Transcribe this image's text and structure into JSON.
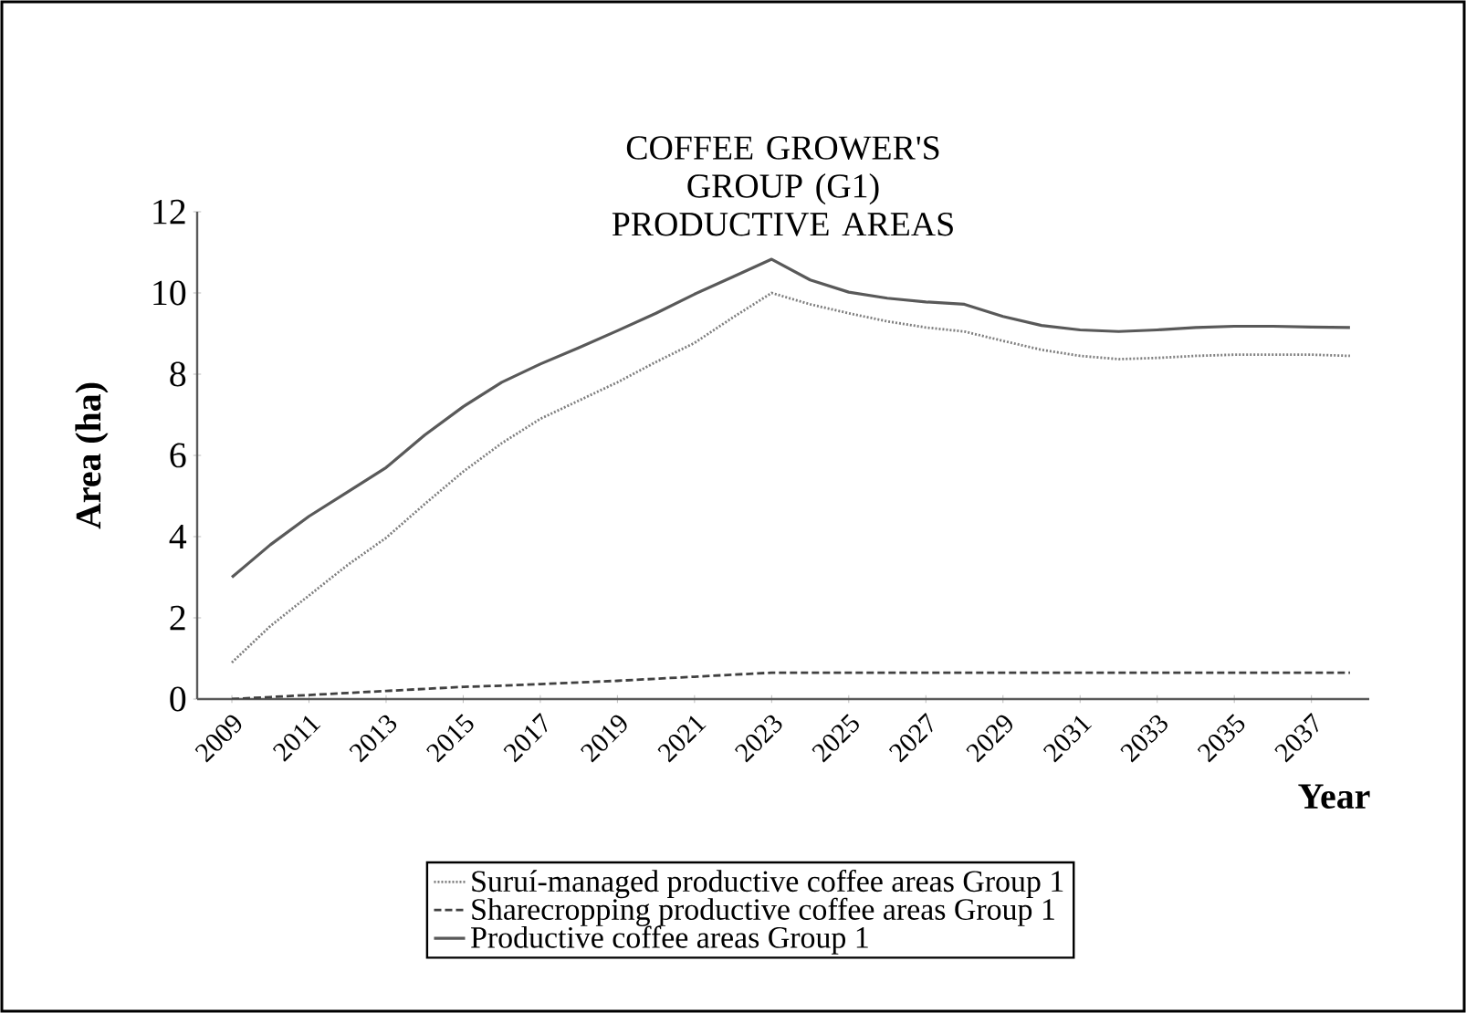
{
  "chart_data": {
    "type": "line",
    "title": "COFFEE GROWER'S GROUP (G1) PRODUCTIVE AREAS",
    "xlabel": "Year",
    "ylabel": "Area (ha)",
    "x": [
      2009,
      2010,
      2011,
      2012,
      2013,
      2014,
      2015,
      2016,
      2017,
      2018,
      2019,
      2020,
      2021,
      2022,
      2023,
      2024,
      2025,
      2026,
      2027,
      2028,
      2029,
      2030,
      2031,
      2032,
      2033,
      2034,
      2035,
      2036,
      2037,
      2038
    ],
    "xlim": [
      2008.1,
      2038.5
    ],
    "xticks": [
      2009,
      2011,
      2013,
      2015,
      2017,
      2019,
      2021,
      2023,
      2025,
      2027,
      2029,
      2031,
      2033,
      2035,
      2037
    ],
    "ylim": [
      0,
      12
    ],
    "yticks": [
      0,
      2,
      4,
      6,
      8,
      10,
      12
    ],
    "legend": "bottom",
    "series": [
      {
        "name": "Suruí-managed productive coffee areas Group 1",
        "color": "#7f7f7f",
        "line_style": "dotted",
        "values": [
          0.9,
          1.8,
          2.55,
          3.3,
          3.97,
          4.8,
          5.6,
          6.3,
          6.9,
          7.35,
          7.8,
          8.3,
          8.77,
          9.4,
          10.0,
          9.72,
          9.5,
          9.3,
          9.15,
          9.05,
          8.82,
          8.6,
          8.45,
          8.37,
          8.4,
          8.45,
          8.48,
          8.48,
          8.48,
          8.45
        ]
      },
      {
        "name": "Sharecropping  productive coffee areas Group 1",
        "color": "#404040",
        "line_style": "dashed",
        "values": [
          0.0,
          0.05,
          0.1,
          0.15,
          0.2,
          0.25,
          0.3,
          0.33,
          0.37,
          0.41,
          0.45,
          0.5,
          0.55,
          0.6,
          0.65,
          0.65,
          0.65,
          0.65,
          0.65,
          0.65,
          0.65,
          0.65,
          0.65,
          0.65,
          0.65,
          0.65,
          0.65,
          0.65,
          0.65,
          0.65
        ]
      },
      {
        "name": "Productive coffee areas Group 1",
        "color": "#595959",
        "line_style": "solid",
        "values": [
          3.0,
          3.8,
          4.5,
          5.1,
          5.7,
          6.5,
          7.2,
          7.8,
          8.25,
          8.65,
          9.07,
          9.5,
          9.97,
          10.4,
          10.83,
          10.32,
          10.02,
          9.87,
          9.78,
          9.72,
          9.42,
          9.2,
          9.09,
          9.05,
          9.09,
          9.15,
          9.18,
          9.18,
          9.16,
          9.15
        ]
      }
    ]
  }
}
